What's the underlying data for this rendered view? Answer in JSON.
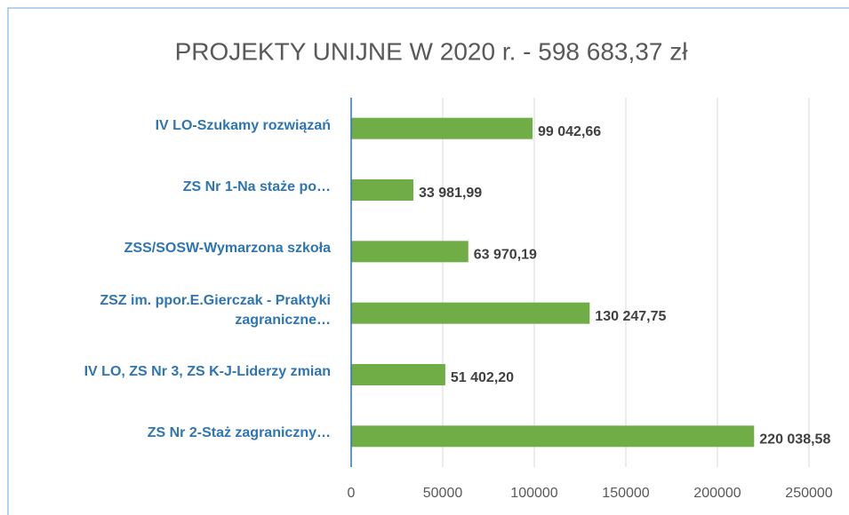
{
  "chart_data": {
    "type": "bar",
    "orientation": "horizontal",
    "title": "PROJEKTY UNIJNE W 2020 r. - 598 683,37 zł",
    "categories": [
      "IV LO-Szukamy rozwiązań",
      "ZS Nr 1-Na staże po…",
      "ZSS/SOSW-Wymarzona szkoła",
      "ZSZ im. ppor.E.Gierczak - Praktyki zagraniczne…",
      "IV LO, ZS Nr 3, ZS K-J-Liderzy zmian",
      "ZS Nr 2-Staż zagraniczny…"
    ],
    "values": [
      99042.66,
      33981.99,
      63970.19,
      130247.75,
      51402.2,
      220038.58
    ],
    "value_labels": [
      "99 042,66",
      "33 981,99",
      "63 970,19",
      "130 247,75",
      "51 402,20",
      "220 038,58"
    ],
    "color": "#70ad47",
    "xlim": [
      0,
      250000
    ],
    "xticks": [
      0,
      50000,
      100000,
      150000,
      200000,
      250000
    ],
    "grid": true
  }
}
